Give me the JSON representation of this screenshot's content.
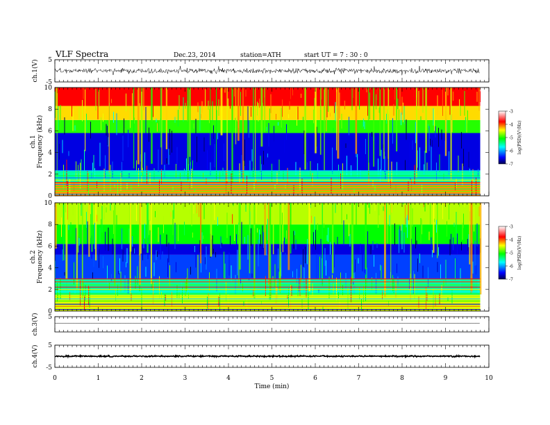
{
  "header": {
    "title": "VLF Spectra",
    "date": "Dec.23, 2014",
    "station": "station=ATH",
    "start": "start  UT =   7 : 30 : 0"
  },
  "chart_data": [
    {
      "type": "line",
      "panel": "ch1-waveform",
      "ylabel": "ch.1(V)",
      "ylim": [
        -5,
        5
      ],
      "yticks": [
        "5",
        "-5"
      ],
      "xlim": [
        0,
        10
      ],
      "data_end_min": 9.8,
      "level": 0.0,
      "amplitude_typical": 0.9,
      "color": "#000000"
    },
    {
      "type": "heatmap",
      "panel": "ch1-spectrogram",
      "ylabel": "ch.1\nFrequency  (kHz)",
      "ylim": [
        0,
        10
      ],
      "yticks": [
        "0",
        "2",
        "4",
        "6",
        "8",
        "10"
      ],
      "xlim": [
        0,
        10
      ],
      "data_end_min": 9.8,
      "colorbar": {
        "label": "log(PSD)(V²/Hz)",
        "range": [
          -7,
          -3
        ],
        "ticks": [
          "-3",
          "-4",
          "-5",
          "-6",
          "-7"
        ]
      },
      "bands": [
        {
          "from_khz": 0.0,
          "to_khz": 1.2,
          "log_psd": -4.2,
          "note": "striped low-frequency band with red lines"
        },
        {
          "from_khz": 1.2,
          "to_khz": 2.3,
          "log_psd": -5.6,
          "note": "cyan/green lines"
        },
        {
          "from_khz": 2.3,
          "to_khz": 5.8,
          "log_psd": -6.7,
          "note": "deep blue background"
        },
        {
          "from_khz": 5.8,
          "to_khz": 7.0,
          "log_psd": -5.1,
          "note": "green"
        },
        {
          "from_khz": 7.0,
          "to_khz": 8.3,
          "log_psd": -4.4,
          "note": "yellow/orange"
        },
        {
          "from_khz": 8.3,
          "to_khz": 10.0,
          "log_psd": -3.6,
          "note": "red"
        }
      ]
    },
    {
      "type": "heatmap",
      "panel": "ch2-spectrogram",
      "ylabel": "ch.2\nFrequency  (kHz)",
      "ylim": [
        0,
        10
      ],
      "yticks": [
        "0",
        "2",
        "4",
        "6",
        "8",
        "10"
      ],
      "xlim": [
        0,
        10
      ],
      "data_end_min": 9.8,
      "colorbar": {
        "label": "log(PSD)(V²/Hz)",
        "range": [
          -7,
          -3
        ],
        "ticks": [
          "-3",
          "-4",
          "-5",
          "-6",
          "-7"
        ]
      },
      "bands": [
        {
          "from_khz": 0.0,
          "to_khz": 1.5,
          "log_psd": -4.6,
          "note": "striped low band, orange/red lines"
        },
        {
          "from_khz": 1.5,
          "to_khz": 3.0,
          "log_psd": -5.6,
          "note": "cyan"
        },
        {
          "from_khz": 3.0,
          "to_khz": 5.2,
          "log_psd": -6.4,
          "note": "blue with cyan stripes"
        },
        {
          "from_khz": 5.2,
          "to_khz": 6.2,
          "log_psd": -6.7,
          "note": "deep blue"
        },
        {
          "from_khz": 6.2,
          "to_khz": 8.0,
          "log_psd": -5.2,
          "note": "green"
        },
        {
          "from_khz": 8.0,
          "to_khz": 10.0,
          "log_psd": -4.7,
          "note": "green/yellow with red bursts"
        }
      ]
    },
    {
      "type": "line",
      "panel": "ch3-waveform",
      "ylabel": "ch.3(V)",
      "ylim": [
        -5,
        5
      ],
      "yticks": [
        "5"
      ],
      "xlim": [
        0,
        10
      ],
      "data_end_min": 9.8,
      "level": 0.7,
      "amplitude_typical": 0.05,
      "color": "#000000"
    },
    {
      "type": "line",
      "panel": "ch4-waveform",
      "ylabel": "ch.4(V)",
      "ylim": [
        -5,
        5
      ],
      "yticks": [
        "5",
        "-5"
      ],
      "xlim": [
        0,
        10
      ],
      "data_end_min": 9.8,
      "level": 0.0,
      "amplitude_typical": 0.25,
      "color": "#000000"
    }
  ],
  "xaxis": {
    "label": "Time  (min)",
    "ticks": [
      "0",
      "1",
      "2",
      "3",
      "4",
      "5",
      "6",
      "7",
      "8",
      "9",
      "10"
    ]
  }
}
